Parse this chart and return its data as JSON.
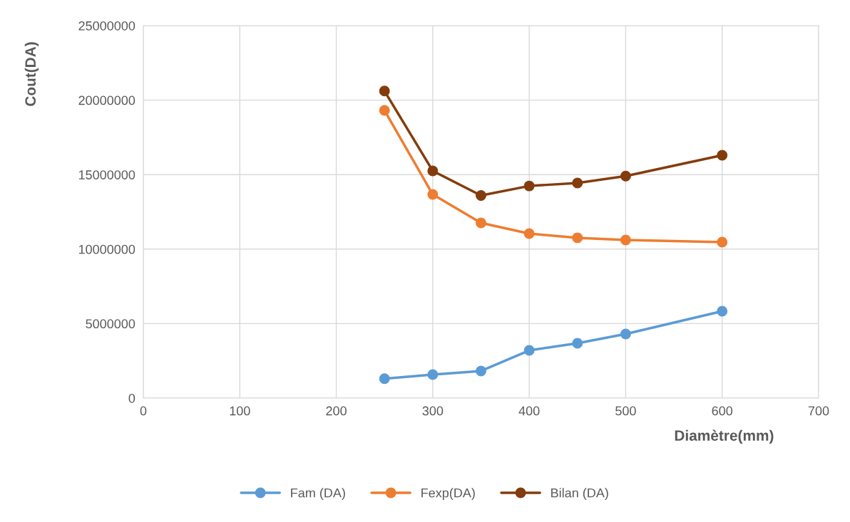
{
  "chart_data": {
    "type": "line",
    "xlabel": "Diamètre(mm)",
    "ylabel": "Cout(DA)",
    "x": [
      250,
      300,
      350,
      400,
      450,
      500,
      600
    ],
    "series": [
      {
        "name": "Fam (DA)",
        "color": "#5b9bd5",
        "values": [
          1300000,
          1580000,
          1820000,
          3200000,
          3680000,
          4300000,
          5830000
        ]
      },
      {
        "name": "Fexp(DA)",
        "color": "#ed7d31",
        "values": [
          19310000,
          13670000,
          11760000,
          11040000,
          10760000,
          10610000,
          10470000
        ]
      },
      {
        "name": "Bilan (DA)",
        "color": "#843c0c",
        "values": [
          20610000,
          15250000,
          13600000,
          14240000,
          14440000,
          14900000,
          16300000
        ]
      }
    ],
    "xlim": [
      0,
      700
    ],
    "xticks": [
      0,
      100,
      200,
      300,
      400,
      500,
      600,
      700
    ],
    "ylim": [
      0,
      25000000
    ],
    "yticks": [
      0,
      5000000,
      10000000,
      15000000,
      20000000,
      25000000
    ],
    "grid": true,
    "legend": "bottom",
    "marker": "circle",
    "line_style": "solid"
  }
}
